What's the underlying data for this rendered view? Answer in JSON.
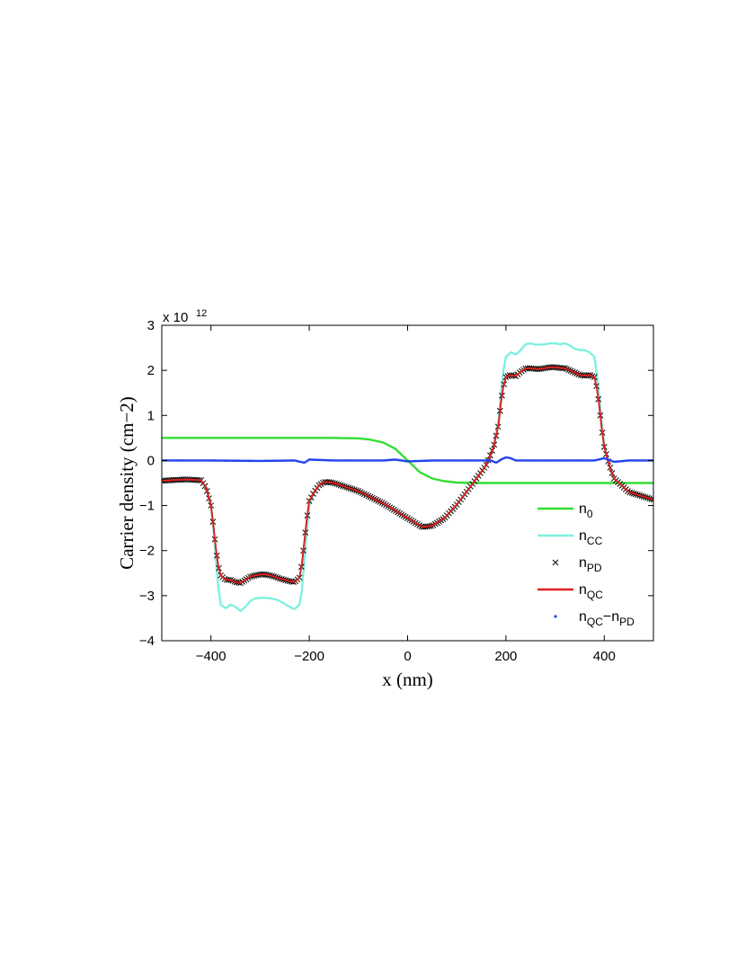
{
  "chart_data": {
    "type": "line",
    "xlabel": "x (nm)",
    "ylabel": "Carrier density (cm−2)",
    "y_multiplier": "x 10",
    "y_multiplier_exponent": "12",
    "xlim": [
      -500,
      500
    ],
    "ylim": [
      -4,
      3
    ],
    "xticks": [
      -400,
      -200,
      0,
      200,
      400
    ],
    "yticks": [
      -4,
      -3,
      -2,
      -1,
      0,
      1,
      2,
      3
    ],
    "xtick_labels": [
      "−400",
      "−200",
      "0",
      "200",
      "400"
    ],
    "ytick_labels": [
      "−4",
      "−3",
      "−2",
      "−1",
      "0",
      "1",
      "2",
      "3"
    ],
    "grid": false,
    "legend_position": "bottom-right",
    "series": [
      {
        "name": "n0",
        "label_main": "n",
        "label_sub": "0",
        "color": "#33dd33",
        "style": "line",
        "x": [
          -500,
          -150,
          -100,
          -75,
          -50,
          -25,
          0,
          25,
          50,
          75,
          100,
          150,
          500
        ],
        "y": [
          0.5,
          0.5,
          0.49,
          0.46,
          0.4,
          0.26,
          0.0,
          -0.26,
          -0.4,
          -0.46,
          -0.49,
          -0.5,
          -0.5
        ]
      },
      {
        "name": "nCC",
        "label_main": "n",
        "label_sub": "CC",
        "color": "#7ff0e0",
        "style": "line",
        "x": [
          -500,
          -450,
          -420,
          -410,
          -400,
          -395,
          -390,
          -385,
          -380,
          -370,
          -360,
          -350,
          -340,
          -330,
          -320,
          -310,
          -300,
          -290,
          -280,
          -270,
          -260,
          -250,
          -240,
          -230,
          -220,
          -215,
          -210,
          -205,
          -200,
          -190,
          -180,
          -170,
          -160,
          -150,
          -100,
          -50,
          0,
          30,
          50,
          75,
          100,
          130,
          160,
          175,
          185,
          190,
          195,
          200,
          210,
          220,
          230,
          240,
          250,
          260,
          270,
          280,
          290,
          300,
          310,
          320,
          330,
          340,
          350,
          360,
          370,
          380,
          385,
          390,
          395,
          400,
          410,
          420,
          450,
          500
        ],
        "y": [
          -0.45,
          -0.44,
          -0.45,
          -0.6,
          -1.0,
          -1.5,
          -2.2,
          -2.8,
          -3.2,
          -3.28,
          -3.2,
          -3.25,
          -3.34,
          -3.25,
          -3.12,
          -3.06,
          -3.05,
          -3.05,
          -3.06,
          -3.08,
          -3.12,
          -3.18,
          -3.25,
          -3.3,
          -3.2,
          -2.9,
          -2.2,
          -1.6,
          -1.0,
          -0.7,
          -0.55,
          -0.5,
          -0.5,
          -0.5,
          -0.7,
          -0.95,
          -1.3,
          -1.5,
          -1.45,
          -1.3,
          -1.0,
          -0.55,
          -0.1,
          0.3,
          0.9,
          1.5,
          2.0,
          2.3,
          2.4,
          2.35,
          2.45,
          2.58,
          2.6,
          2.57,
          2.57,
          2.58,
          2.6,
          2.6,
          2.58,
          2.6,
          2.55,
          2.48,
          2.45,
          2.45,
          2.4,
          2.3,
          1.9,
          1.4,
          0.8,
          0.35,
          -0.1,
          -0.4,
          -0.7,
          -0.87
        ]
      },
      {
        "name": "nPD",
        "label_main": "n",
        "label_sub": "PD",
        "color": "#000000",
        "style": "marker-x",
        "x": [
          -500,
          -450,
          -420,
          -410,
          -400,
          -395,
          -390,
          -385,
          -380,
          -370,
          -360,
          -350,
          -340,
          -330,
          -320,
          -310,
          -300,
          -290,
          -280,
          -270,
          -260,
          -250,
          -240,
          -230,
          -220,
          -215,
          -210,
          -205,
          -200,
          -190,
          -180,
          -170,
          -160,
          -150,
          -100,
          -50,
          0,
          30,
          50,
          75,
          100,
          130,
          160,
          175,
          185,
          190,
          195,
          200,
          210,
          220,
          230,
          240,
          250,
          260,
          270,
          280,
          290,
          300,
          310,
          320,
          330,
          340,
          350,
          360,
          370,
          380,
          385,
          390,
          395,
          400,
          410,
          420,
          450,
          500
        ],
        "y": [
          -0.45,
          -0.42,
          -0.44,
          -0.6,
          -1.0,
          -1.45,
          -1.95,
          -2.35,
          -2.55,
          -2.65,
          -2.65,
          -2.7,
          -2.72,
          -2.65,
          -2.58,
          -2.55,
          -2.53,
          -2.53,
          -2.55,
          -2.58,
          -2.62,
          -2.65,
          -2.68,
          -2.7,
          -2.6,
          -2.3,
          -1.8,
          -1.3,
          -0.9,
          -0.7,
          -0.55,
          -0.48,
          -0.48,
          -0.5,
          -0.68,
          -0.95,
          -1.28,
          -1.48,
          -1.45,
          -1.28,
          -0.98,
          -0.55,
          -0.1,
          0.3,
          0.8,
          1.3,
          1.65,
          1.85,
          1.9,
          1.87,
          1.97,
          2.04,
          2.05,
          2.03,
          2.03,
          2.05,
          2.07,
          2.07,
          2.05,
          2.05,
          2.0,
          1.95,
          1.9,
          1.88,
          1.9,
          1.85,
          1.6,
          1.2,
          0.7,
          0.3,
          -0.1,
          -0.4,
          -0.7,
          -0.87
        ]
      },
      {
        "name": "nQC",
        "label_main": "n",
        "label_sub": "QC",
        "color": "#e02020",
        "style": "line",
        "x": [
          -500,
          -450,
          -420,
          -410,
          -400,
          -395,
          -390,
          -385,
          -380,
          -370,
          -360,
          -350,
          -340,
          -330,
          -320,
          -310,
          -300,
          -290,
          -280,
          -270,
          -260,
          -250,
          -240,
          -230,
          -220,
          -215,
          -210,
          -205,
          -200,
          -190,
          -180,
          -170,
          -160,
          -150,
          -100,
          -50,
          0,
          30,
          50,
          75,
          100,
          130,
          160,
          175,
          185,
          190,
          195,
          200,
          210,
          220,
          230,
          240,
          250,
          260,
          270,
          280,
          290,
          300,
          310,
          320,
          330,
          340,
          350,
          360,
          370,
          380,
          385,
          390,
          395,
          400,
          410,
          420,
          450,
          500
        ],
        "y": [
          -0.45,
          -0.42,
          -0.44,
          -0.6,
          -1.0,
          -1.45,
          -1.95,
          -2.35,
          -2.55,
          -2.65,
          -2.65,
          -2.7,
          -2.72,
          -2.65,
          -2.58,
          -2.55,
          -2.53,
          -2.53,
          -2.55,
          -2.58,
          -2.62,
          -2.65,
          -2.68,
          -2.7,
          -2.6,
          -2.3,
          -1.8,
          -1.3,
          -0.9,
          -0.7,
          -0.55,
          -0.48,
          -0.48,
          -0.5,
          -0.68,
          -0.95,
          -1.28,
          -1.48,
          -1.45,
          -1.28,
          -0.98,
          -0.55,
          -0.1,
          0.3,
          0.8,
          1.3,
          1.65,
          1.85,
          1.9,
          1.87,
          1.97,
          2.04,
          2.05,
          2.03,
          2.03,
          2.05,
          2.07,
          2.07,
          2.05,
          2.05,
          2.0,
          1.95,
          1.9,
          1.88,
          1.9,
          1.85,
          1.6,
          1.2,
          0.7,
          0.3,
          -0.1,
          -0.4,
          -0.7,
          -0.87
        ]
      },
      {
        "name": "nQC−nPD",
        "label_main": "n",
        "label_sub": "QC",
        "label_mid": "−n",
        "label_sub2": "PD",
        "color": "#2244ee",
        "style": "marker-dot",
        "x": [
          -500,
          -400,
          -300,
          -230,
          -210,
          -200,
          -150,
          -100,
          -50,
          -25,
          0,
          25,
          50,
          100,
          150,
          170,
          180,
          190,
          200,
          210,
          220,
          250,
          300,
          350,
          380,
          400,
          420,
          450,
          500
        ],
        "y": [
          0.0,
          0.0,
          -0.01,
          0.0,
          -0.05,
          0.02,
          0.0,
          0.0,
          0.0,
          0.02,
          -0.02,
          -0.01,
          0.0,
          0.0,
          0.0,
          0.0,
          -0.05,
          0.02,
          0.07,
          0.05,
          0.0,
          0.0,
          0.0,
          0.0,
          0.0,
          0.05,
          -0.03,
          0.0,
          0.0
        ]
      }
    ]
  }
}
